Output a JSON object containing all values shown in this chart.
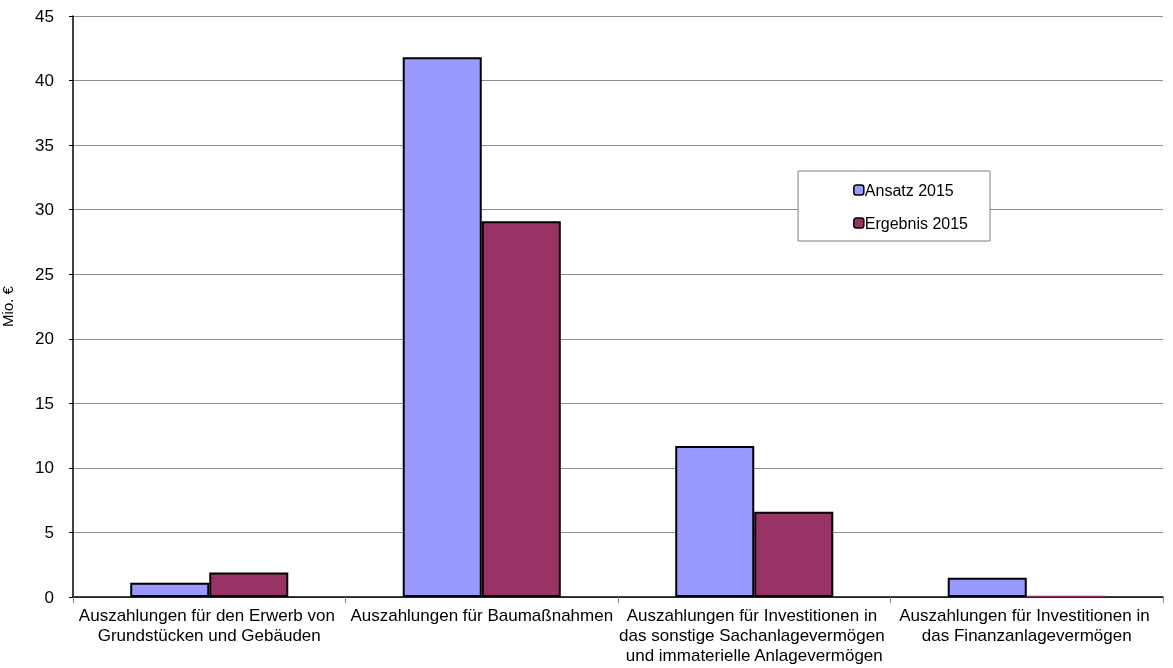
{
  "chart_data": {
    "type": "bar",
    "ylabel": "Mio. €",
    "categories": [
      "Auszahlungen für den Erwerb von Grundstücken und Gebäuden",
      "Auszahlungen für Baumaßnahmen",
      "Auszahlungen für Investitionen in das sonstige Sachanlagevermögen und immaterielle Anlagevermögen",
      "Auszahlungen für Investitionen in das Finanzanlagevermögen"
    ],
    "series": [
      {
        "name": "Ansatz 2015",
        "color": "#9999ff",
        "values": [
          1.1,
          41.8,
          11.7,
          1.5
        ]
      },
      {
        "name": "Ergebnis 2015",
        "color": "#993366",
        "values": [
          1.9,
          29.1,
          6.6,
          0.1
        ]
      }
    ],
    "ylim": [
      0,
      45
    ],
    "yticks": [
      0,
      5,
      10,
      15,
      20,
      25,
      30,
      35,
      40,
      45
    ],
    "grid": "y",
    "legend": "top right"
  }
}
